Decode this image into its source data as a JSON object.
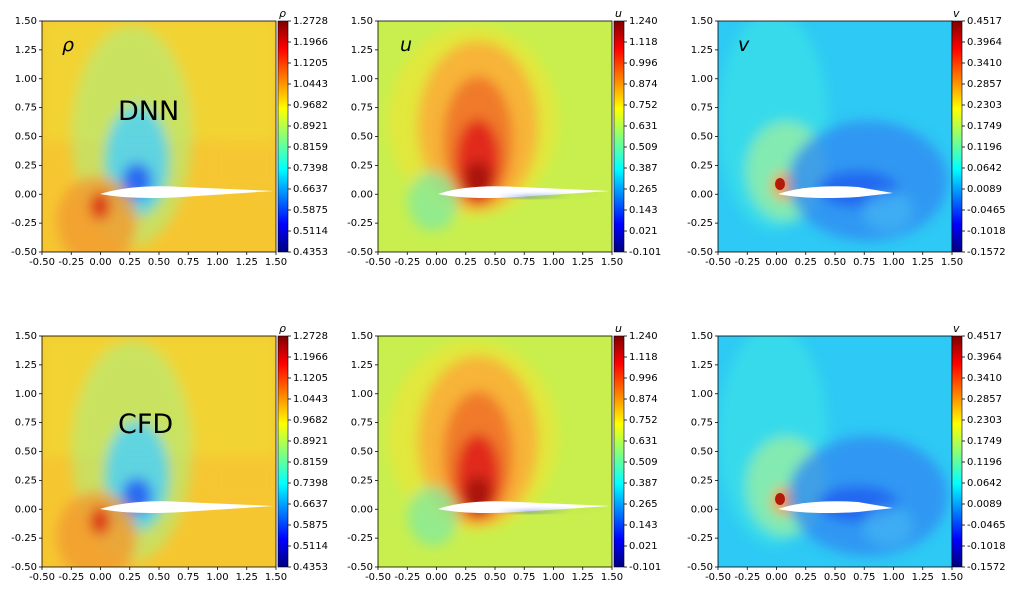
{
  "figure": {
    "rows": [
      {
        "model_label": "DNN"
      },
      {
        "model_label": "CFD"
      }
    ],
    "columns": [
      {
        "variable": "ρ",
        "colorbar_title": "ρ",
        "colorbar_ticks": [
          "1.2728",
          "1.1966",
          "1.1205",
          "1.0443",
          "0.9682",
          "0.8921",
          "0.8159",
          "0.7398",
          "0.6637",
          "0.5875",
          "0.5114",
          "0.4353"
        ]
      },
      {
        "variable": "u",
        "colorbar_title": "u",
        "colorbar_ticks": [
          "1.240",
          "1.118",
          "0.996",
          "0.874",
          "0.752",
          "0.631",
          "0.509",
          "0.387",
          "0.265",
          "0.143",
          "0.021",
          "-0.101"
        ]
      },
      {
        "variable": "v",
        "colorbar_title": "v",
        "colorbar_ticks": [
          "0.4517",
          "0.3964",
          "0.3410",
          "0.2857",
          "0.2303",
          "0.1749",
          "0.1196",
          "0.0642",
          "0.0089",
          "-0.0465",
          "-0.1018",
          "-0.1572"
        ]
      }
    ],
    "x_ticks": [
      "-0.50",
      "-0.25",
      "0.00",
      "0.25",
      "0.50",
      "0.75",
      "1.00",
      "1.25",
      "1.50"
    ],
    "y_ticks": [
      "1.50",
      "1.25",
      "1.00",
      "0.75",
      "0.50",
      "0.25",
      "0.00",
      "-0.25",
      "-0.50"
    ],
    "colors": {
      "colormap": "jet",
      "airfoil": "#ffffff"
    }
  },
  "chart_data": [
    {
      "type": "heatmap",
      "panel": "DNN ρ",
      "variable": "ρ",
      "xlim": [
        -0.5,
        1.5
      ],
      "ylim": [
        -0.5,
        1.5
      ],
      "colorbar_range": [
        0.4353,
        1.2728
      ]
    },
    {
      "type": "heatmap",
      "panel": "DNN u",
      "variable": "u",
      "xlim": [
        -0.5,
        1.5
      ],
      "ylim": [
        -0.5,
        1.5
      ],
      "colorbar_range": [
        -0.101,
        1.24
      ]
    },
    {
      "type": "heatmap",
      "panel": "DNN v",
      "variable": "v",
      "xlim": [
        -0.5,
        1.5
      ],
      "ylim": [
        -0.5,
        1.5
      ],
      "colorbar_range": [
        -0.1572,
        0.4517
      ]
    },
    {
      "type": "heatmap",
      "panel": "CFD ρ",
      "variable": "ρ",
      "xlim": [
        -0.5,
        1.5
      ],
      "ylim": [
        -0.5,
        1.5
      ],
      "colorbar_range": [
        0.4353,
        1.2728
      ]
    },
    {
      "type": "heatmap",
      "panel": "CFD u",
      "variable": "u",
      "xlim": [
        -0.5,
        1.5
      ],
      "ylim": [
        -0.5,
        1.5
      ],
      "colorbar_range": [
        -0.101,
        1.24
      ]
    },
    {
      "type": "heatmap",
      "panel": "CFD v",
      "variable": "v",
      "xlim": [
        -0.5,
        1.5
      ],
      "ylim": [
        -0.5,
        1.5
      ],
      "colorbar_range": [
        -0.1572,
        0.4517
      ]
    }
  ]
}
